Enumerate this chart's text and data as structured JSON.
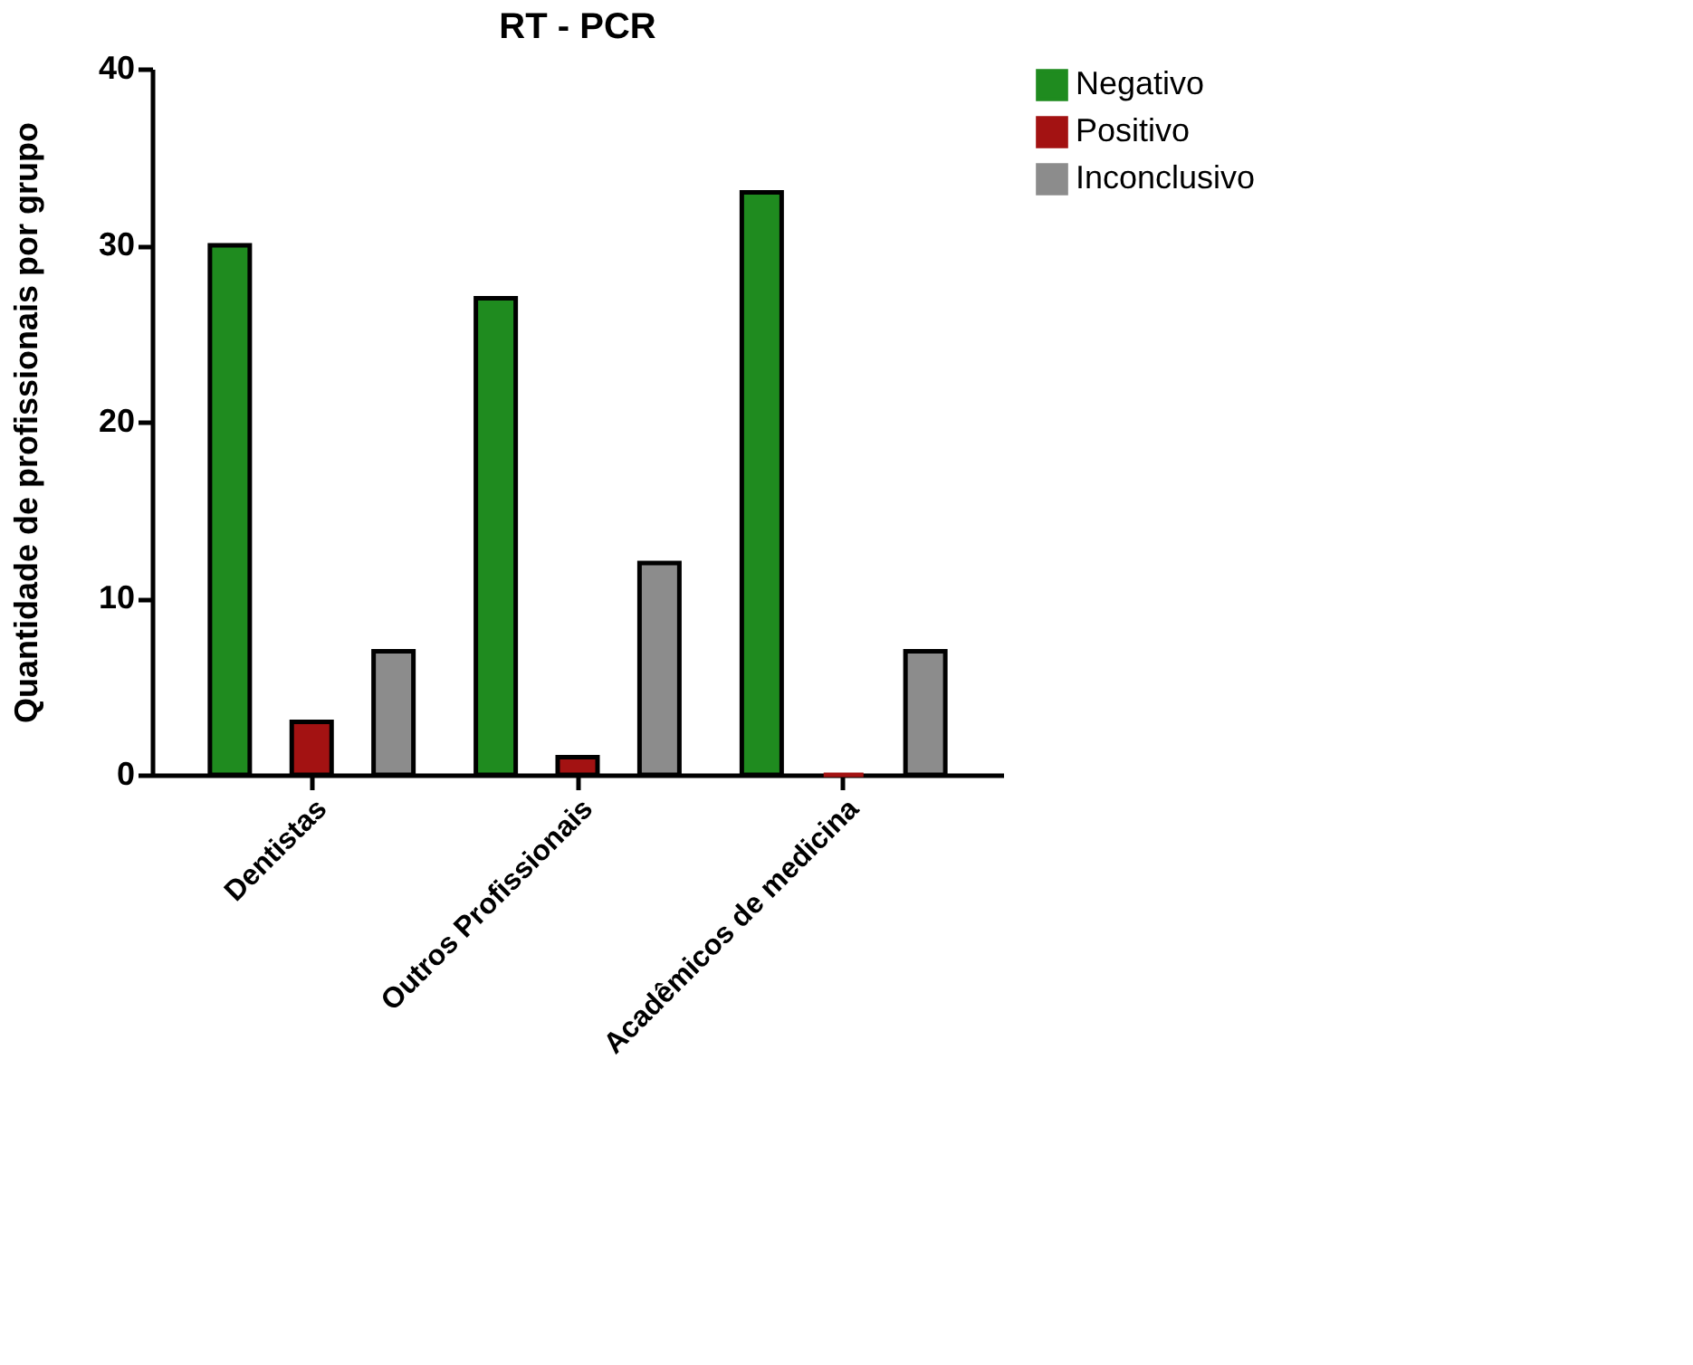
{
  "chart_data": {
    "type": "bar",
    "title": "RT - PCR",
    "ylabel": "Quantidade de profissionais por grupo",
    "categories": [
      "Dentistas",
      "Outros Profissionais",
      "Acadêmicos de medicina"
    ],
    "series": [
      {
        "name": "Negativo",
        "color": "#1f8b1f",
        "values": [
          30,
          27,
          33
        ]
      },
      {
        "name": "Positivo",
        "color": "#a31212",
        "values": [
          3,
          1,
          0
        ]
      },
      {
        "name": "Inconclusivo",
        "color": "#8c8c8c",
        "values": [
          7,
          12,
          7
        ]
      }
    ],
    "ylim": [
      0,
      40
    ],
    "yticks": [
      0,
      10,
      20,
      30,
      40
    ],
    "grid": false,
    "legend": "top right"
  }
}
